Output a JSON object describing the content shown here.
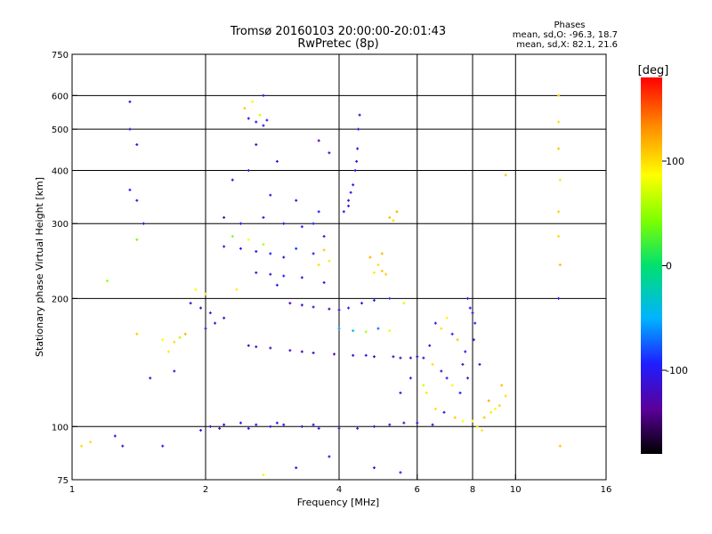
{
  "chart_data": {
    "type": "scatter",
    "title": "Tromsø 20160103 20:00:00-20:01:43",
    "subtitle": "RwPretec (8p)",
    "xlabel": "Frequency [MHz]",
    "ylabel": "Stationary phase Virtual Height [km]",
    "x_scale": "log",
    "y_scale": "log",
    "xlim": [
      1,
      16
    ],
    "ylim": [
      75,
      750
    ],
    "x_ticks": [
      1,
      2,
      4,
      6,
      8,
      10,
      16
    ],
    "x_tick_labels": [
      "1",
      "2",
      "4",
      "6",
      "8",
      "10",
      "16"
    ],
    "y_ticks": [
      75,
      100,
      200,
      300,
      400,
      500,
      600,
      750
    ],
    "y_tick_labels": [
      "75",
      "100",
      "200",
      "300",
      "400",
      "500",
      "600",
      "750"
    ],
    "x_gridlines": [
      2,
      4,
      6,
      8,
      10
    ],
    "y_gridlines": [
      100,
      200,
      300,
      400,
      500,
      600
    ],
    "grid": true,
    "stats": {
      "heading": "Phases",
      "line1": "mean, sd,O: -96.3, 18.7",
      "line2": "mean, sd,X:  82.1, 21.6"
    },
    "colorbar": {
      "label": "[deg]",
      "range": [
        -180,
        180
      ],
      "ticks": [
        -100,
        0,
        100
      ],
      "tick_labels": [
        "-100",
        "0",
        "100"
      ]
    },
    "points": [
      [
        2.05,
        100,
        -110
      ],
      [
        2.2,
        101,
        -115
      ],
      [
        2.4,
        102,
        -105
      ],
      [
        2.6,
        101,
        -112
      ],
      [
        2.8,
        100,
        -100
      ],
      [
        3.0,
        101,
        -108
      ],
      [
        3.3,
        100,
        -118
      ],
      [
        3.6,
        99,
        -104
      ],
      [
        4.0,
        99,
        -110
      ],
      [
        4.4,
        99,
        -106
      ],
      [
        4.8,
        100,
        -115
      ],
      [
        5.2,
        101,
        -98
      ],
      [
        5.6,
        102,
        -120
      ],
      [
        6.0,
        102,
        -102
      ],
      [
        6.5,
        101,
        -112
      ],
      [
        1.95,
        98,
        -95
      ],
      [
        2.15,
        99,
        -125
      ],
      [
        2.5,
        99,
        -99
      ],
      [
        2.9,
        102,
        -114
      ],
      [
        3.5,
        101,
        -109
      ],
      [
        2.5,
        155,
        -120
      ],
      [
        2.8,
        153,
        -125
      ],
      [
        3.1,
        151,
        -118
      ],
      [
        3.5,
        149,
        -122
      ],
      [
        3.9,
        148,
        -130
      ],
      [
        4.3,
        147,
        -119
      ],
      [
        4.8,
        146,
        -124
      ],
      [
        5.3,
        146,
        -115
      ],
      [
        5.8,
        145,
        -120
      ],
      [
        6.2,
        145,
        -110
      ],
      [
        2.6,
        154,
        -112
      ],
      [
        3.3,
        150,
        -128
      ],
      [
        4.6,
        147,
        -117
      ],
      [
        5.5,
        145,
        -121
      ],
      [
        6.0,
        146,
        -113
      ],
      [
        2.2,
        265,
        -105
      ],
      [
        2.4,
        262,
        -100
      ],
      [
        2.6,
        258,
        -110
      ],
      [
        2.8,
        255,
        -95
      ],
      [
        3.0,
        250,
        -120
      ],
      [
        2.3,
        280,
        45
      ],
      [
        2.5,
        275,
        85
      ],
      [
        2.7,
        268,
        60
      ],
      [
        3.2,
        262,
        -90
      ],
      [
        3.5,
        255,
        -105
      ],
      [
        2.6,
        230,
        -100
      ],
      [
        2.8,
        228,
        -112
      ],
      [
        3.0,
        226,
        -95
      ],
      [
        3.3,
        224,
        -108
      ],
      [
        3.7,
        218,
        -102
      ],
      [
        3.1,
        195,
        -130
      ],
      [
        3.3,
        193,
        -125
      ],
      [
        3.5,
        191,
        -118
      ],
      [
        3.8,
        189,
        -127
      ],
      [
        4.0,
        188,
        -121
      ],
      [
        4.1,
        320,
        -105
      ],
      [
        4.2,
        340,
        -110
      ],
      [
        4.3,
        370,
        -100
      ],
      [
        4.35,
        400,
        -108
      ],
      [
        4.4,
        450,
        -112
      ],
      [
        4.42,
        500,
        -104
      ],
      [
        4.45,
        540,
        -115
      ],
      [
        4.25,
        355,
        -98
      ],
      [
        4.38,
        420,
        -118
      ],
      [
        4.2,
        330,
        -102
      ],
      [
        2.5,
        530,
        -110
      ],
      [
        2.6,
        520,
        -105
      ],
      [
        2.7,
        510,
        -112
      ],
      [
        2.65,
        540,
        70
      ],
      [
        2.55,
        580,
        90
      ],
      [
        2.7,
        600,
        -100
      ],
      [
        2.45,
        560,
        110
      ],
      [
        2.75,
        525,
        -95
      ],
      [
        1.6,
        160,
        85
      ],
      [
        1.7,
        158,
        100
      ],
      [
        1.75,
        162,
        60
      ],
      [
        1.8,
        165,
        120
      ],
      [
        1.65,
        150,
        95
      ],
      [
        2.0,
        170,
        -110
      ],
      [
        2.1,
        175,
        -105
      ],
      [
        2.2,
        180,
        -115
      ],
      [
        1.95,
        190,
        -120
      ],
      [
        2.05,
        185,
        -100
      ],
      [
        4.2,
        190,
        -95
      ],
      [
        4.5,
        195,
        -100
      ],
      [
        4.8,
        198,
        -90
      ],
      [
        5.2,
        200,
        -85
      ],
      [
        5.6,
        195,
        75
      ],
      [
        4.0,
        170,
        -60
      ],
      [
        4.3,
        168,
        -40
      ],
      [
        4.6,
        167,
        60
      ],
      [
        4.9,
        170,
        -70
      ],
      [
        5.2,
        168,
        80
      ],
      [
        4.8,
        230,
        95
      ],
      [
        5.0,
        232,
        110
      ],
      [
        4.9,
        240,
        100
      ],
      [
        5.1,
        228,
        105
      ],
      [
        5.2,
        310,
        115
      ],
      [
        5.4,
        320,
        120
      ],
      [
        5.3,
        305,
        100
      ],
      [
        4.7,
        250,
        120
      ],
      [
        5.0,
        255,
        115
      ],
      [
        6.5,
        140,
        100
      ],
      [
        6.8,
        135,
        -110
      ],
      [
        7.0,
        130,
        -105
      ],
      [
        7.2,
        125,
        90
      ],
      [
        7.5,
        120,
        -100
      ],
      [
        6.3,
        120,
        95
      ],
      [
        6.6,
        110,
        100
      ],
      [
        6.9,
        108,
        -115
      ],
      [
        7.3,
        105,
        110
      ],
      [
        7.6,
        103,
        85
      ],
      [
        7.9,
        190,
        -105
      ],
      [
        8.0,
        185,
        -110
      ],
      [
        7.8,
        200,
        -100
      ],
      [
        8.1,
        175,
        -95
      ],
      [
        8.05,
        160,
        -108
      ],
      [
        8.2,
        100,
        100
      ],
      [
        8.5,
        105,
        110
      ],
      [
        8.8,
        108,
        95
      ],
      [
        9.2,
        112,
        105
      ],
      [
        9.5,
        118,
        100
      ],
      [
        8.0,
        103,
        90
      ],
      [
        8.7,
        115,
        120
      ],
      [
        9.0,
        110,
        85
      ],
      [
        9.3,
        125,
        115
      ],
      [
        8.4,
        98,
        95
      ],
      [
        7.8,
        130,
        -110
      ],
      [
        7.6,
        140,
        -120
      ],
      [
        7.7,
        150,
        -105
      ],
      [
        8.3,
        140,
        -115
      ],
      [
        12.5,
        600,
        105
      ],
      [
        12.5,
        520,
        100
      ],
      [
        12.5,
        450,
        110
      ],
      [
        12.6,
        380,
        95
      ],
      [
        12.5,
        320,
        105
      ],
      [
        12.5,
        280,
        100
      ],
      [
        12.6,
        240,
        115
      ],
      [
        12.5,
        200,
        -100
      ],
      [
        12.6,
        90,
        110
      ],
      [
        1.35,
        580,
        -110
      ],
      [
        1.35,
        500,
        -115
      ],
      [
        1.4,
        460,
        -105
      ],
      [
        1.35,
        360,
        -100
      ],
      [
        1.4,
        340,
        -108
      ],
      [
        1.45,
        300,
        -112
      ],
      [
        1.4,
        275,
        40
      ],
      [
        1.2,
        220,
        50
      ],
      [
        1.4,
        165,
        110
      ],
      [
        1.5,
        130,
        -120
      ],
      [
        1.7,
        135,
        -110
      ],
      [
        1.25,
        95,
        -105
      ],
      [
        1.3,
        90,
        -115
      ],
      [
        1.1,
        92,
        100
      ],
      [
        1.6,
        90,
        -100
      ],
      [
        1.9,
        210,
        90
      ],
      [
        2.0,
        205,
        100
      ],
      [
        1.85,
        195,
        -110
      ],
      [
        2.35,
        210,
        95
      ],
      [
        2.9,
        215,
        -100
      ],
      [
        3.6,
        240,
        100
      ],
      [
        3.7,
        260,
        110
      ],
      [
        3.8,
        245,
        95
      ],
      [
        3.5,
        300,
        -90
      ],
      [
        3.7,
        280,
        -110
      ],
      [
        2.2,
        310,
        -115
      ],
      [
        2.4,
        300,
        -105
      ],
      [
        2.7,
        310,
        -100
      ],
      [
        3.0,
        300,
        -110
      ],
      [
        3.3,
        295,
        -95
      ],
      [
        3.6,
        320,
        -100
      ],
      [
        3.2,
        340,
        -120
      ],
      [
        2.8,
        350,
        -110
      ],
      [
        2.3,
        380,
        -112
      ],
      [
        2.5,
        400,
        -105
      ],
      [
        3.6,
        470,
        -130
      ],
      [
        3.8,
        440,
        -120
      ],
      [
        2.6,
        460,
        -110
      ],
      [
        2.9,
        420,
        -108
      ],
      [
        5.8,
        130,
        -100
      ],
      [
        6.2,
        125,
        70
      ],
      [
        5.5,
        120,
        -110
      ],
      [
        6.8,
        170,
        100
      ],
      [
        7.2,
        165,
        -95
      ],
      [
        7.0,
        180,
        90
      ],
      [
        6.6,
        175,
        -105
      ],
      [
        7.4,
        160,
        110
      ],
      [
        6.4,
        155,
        -110
      ],
      [
        4.8,
        80,
        -115
      ],
      [
        5.5,
        78,
        -100
      ],
      [
        3.8,
        85,
        -110
      ],
      [
        2.7,
        77,
        90
      ],
      [
        3.2,
        80,
        -105
      ],
      [
        9.5,
        390,
        110
      ],
      [
        1.05,
        90,
        100
      ]
    ]
  }
}
